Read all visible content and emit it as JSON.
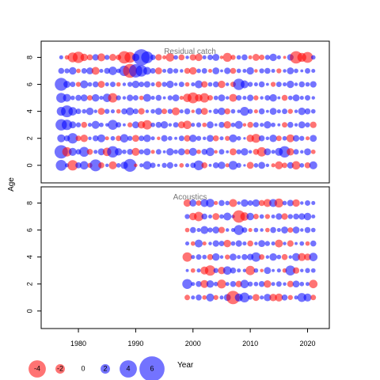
{
  "chart_data": {
    "type": "scatter",
    "ylabel": "Age",
    "xlabel": "Year",
    "x_ticks": [
      1980,
      1990,
      2000,
      2010,
      2020
    ],
    "y_ticks": [
      0,
      2,
      4,
      6,
      8
    ],
    "xlim": [
      1973.5,
      2023.8
    ],
    "ylim": [
      -1.3,
      9.2
    ],
    "grid": false,
    "colors": {
      "positive": "#0000ff",
      "negative": "#ff0000",
      "alpha": 0.55
    },
    "panels": [
      {
        "name": "residual-catch",
        "title": "Residual catch",
        "years": [
          1977,
          2021
        ],
        "ages": [
          0,
          8
        ],
        "residuals": [
          [
            1.9,
            0.5,
            -1.8,
            0.9,
            1.4,
            -0.7,
            2.1,
            -0.9,
            0.4,
            -1.3,
            0.6,
            1.2,
            2.3,
            -0.4,
            0.5,
            1.4,
            0.8,
            0.3,
            0.7,
            1.0,
            0.4,
            -0.6,
            0.5,
            0.8,
            1.7,
            -0.9,
            0.3,
            0.9,
            1.2,
            -0.5,
            1.5,
            0.7,
            0.2,
            -1.1,
            0.6,
            1.1,
            0.4,
            -0.5,
            -1.3,
            -0.8,
            1.0,
            -1.4,
            0.6,
            -0.9,
            1.3
          ],
          [
            2.4,
            -1.6,
            1.3,
            0.8,
            1.7,
            -0.9,
            0.5,
            1.1,
            -1.4,
            2.0,
            1.2,
            0.6,
            0.9,
            -1.3,
            0.7,
            1.1,
            -0.5,
            0.8,
            0.3,
            1.2,
            0.6,
            1.1,
            -0.8,
            1.3,
            -0.6,
            0.9,
            1.4,
            -0.4,
            0.8,
            0.3,
            -1.1,
            0.7,
            1.2,
            0.4,
            -0.9,
            -1.6,
            1.1,
            0.5,
            1.3,
            2.0,
            -1.2,
            0.8,
            0.4,
            1.1,
            -0.6
          ],
          [
            1.3,
            0.9,
            1.8,
            -0.8,
            -1.2,
            0.4,
            0.9,
            1.3,
            -0.5,
            0.6,
            -0.8,
            1.4,
            0.7,
            -1.1,
            0.8,
            1.2,
            0.5,
            -0.4,
            1.0,
            0.6,
            0.3,
            0.8,
            -1.0,
            1.2,
            0.7,
            0.4,
            1.1,
            -0.9,
            0.5,
            -0.7,
            1.3,
            0.6,
            0.2,
            -1.2,
            -1.5,
            0.9,
            0.4,
            1.2,
            -0.8,
            0.6,
            -1.3,
            1.0,
            0.7,
            -0.5,
            1.1
          ],
          [
            2.0,
            1.8,
            1.1,
            0.7,
            -0.9,
            0.5,
            1.3,
            0.6,
            0.4,
            1.7,
            0.8,
            0.3,
            -0.7,
            1.1,
            -1.2,
            -1.6,
            0.6,
            0.9,
            1.2,
            0.4,
            0.8,
            -1.1,
            -1.4,
            0.5,
            0.7,
            -0.6,
            1.1,
            0.3,
            0.9,
            -1.2,
            0.6,
            1.3,
            -0.4,
            -0.9,
            0.8,
            0.5,
            1.2,
            0.6,
            0.3,
            -0.8,
            0.9,
            0.4,
            1.1,
            0.7,
            -1.0
          ],
          [
            1.5,
            2.1,
            1.4,
            0.8,
            0.6,
            1.2,
            0.4,
            -1.1,
            0.7,
            0.5,
            -0.6,
            0.9,
            1.3,
            0.8,
            -1.0,
            0.4,
            0.6,
            1.1,
            -0.8,
            0.7,
            -1.3,
            0.5,
            0.9,
            -0.4,
            1.0,
            -1.1,
            0.3,
            0.8,
            1.2,
            -0.9,
            0.6,
            0.4,
            1.5,
            0.7,
            -0.5,
            0.9,
            0.3,
            1.1,
            0.5,
            0.8,
            -0.7,
            0.4,
            1.2,
            0.9,
            0.6
          ],
          [
            1.7,
            1.3,
            0.6,
            0.9,
            1.1,
            -0.8,
            1.2,
            0.5,
            1.4,
            -1.6,
            0.7,
            0.4,
            1.0,
            0.8,
            -0.6,
            1.3,
            0.5,
            0.9,
            0.3,
            0.7,
            1.1,
            -0.5,
            -1.4,
            -1.9,
            -1.2,
            -1.6,
            -0.8,
            0.6,
            1.1,
            0.4,
            -1.3,
            0.8,
            0.5,
            1.0,
            -0.7,
            0.4,
            0.8,
            1.2,
            0.3,
            -0.9,
            0.6,
            1.1,
            0.5,
            0.8,
            0.4
          ],
          [
            2.3,
            1.1,
            0.8,
            -0.7,
            1.3,
            0.6,
            0.9,
            -1.1,
            0.5,
            0.8,
            -0.6,
            0.4,
            0.7,
            1.2,
            0.8,
            1.0,
            0.5,
            -0.9,
            0.7,
            1.2,
            0.4,
            0.8,
            -0.6,
            0.5,
            1.3,
            -1.0,
            0.6,
            0.9,
            -1.2,
            0.4,
            -0.8,
            2.0,
            1.3,
            0.7,
            0.5,
            0.9,
            0.3,
            -0.7,
            0.8,
            0.5,
            1.2,
            0.4,
            0.9,
            0.6,
            1.0
          ],
          [
            0.9,
            0.7,
            1.2,
            -0.6,
            0.8,
            1.1,
            -1.3,
            0.5,
            0.9,
            1.4,
            0.6,
            1.8,
            -2.5,
            2.4,
            2.0,
            1.3,
            0.8,
            -1.1,
            0.5,
            0.9,
            0.7,
            0.4,
            -0.9,
            -1.2,
            0.6,
            0.8,
            -0.5,
            1.1,
            0.3,
            1.0,
            -0.9,
            0.6,
            0.5,
            1.2,
            -0.4,
            0.7,
            0.9,
            0.5,
            -0.7,
            0.4,
            1.1,
            0.6,
            0.3,
            0.8,
            0.5
          ],
          [
            0.5,
            -0.6,
            -1.7,
            -2.0,
            -1.2,
            -0.9,
            1.0,
            -1.3,
            0.7,
            -1.1,
            -0.8,
            -2.2,
            -1.9,
            1.2,
            3.0,
            2.1,
            0.8,
            -1.0,
            -0.5,
            -1.4,
            0.6,
            -0.9,
            0.4,
            -1.0,
            -1.2,
            0.5,
            0.8,
            1.1,
            -0.4,
            -1.5,
            -0.7,
            0.6,
            0.9,
            -0.5,
            -1.1,
            -0.8,
            0.7,
            1.2,
            0.5,
            -0.3,
            1.0,
            -2.2,
            -1.5,
            -1.9,
            0.6
          ]
        ]
      },
      {
        "name": "acoustics",
        "title": "Acoustics",
        "years": [
          1999,
          2021
        ],
        "ages": [
          1,
          8
        ],
        "residuals": [
          [
            -0.8,
            0.5,
            0.9,
            -0.6,
            1.3,
            -0.7,
            0.5,
            1.1,
            -2.4,
            1.3,
            1.7,
            0.6,
            -1.1,
            0.5,
            1.2,
            -1.2,
            -1.3,
            0.9,
            -0.7,
            0.5,
            1.5,
            1.3,
            -0.8
          ],
          [
            1.7,
            0.5,
            0.9,
            -1.3,
            1.2,
            0.6,
            -1.5,
            0.5,
            0.9,
            -1.0,
            1.4,
            0.7,
            0.6,
            0.9,
            -1.2,
            0.5,
            0.8,
            0.4,
            -1.0,
            1.1,
            0.6,
            0.5,
            -1.4
          ],
          [
            0.3,
            -0.6,
            0.5,
            -1.3,
            -1.8,
            0.7,
            -1.2,
            1.4,
            0.9,
            0.5,
            0.4,
            -1.6,
            0.6,
            -0.4,
            1.1,
            0.3,
            0.5,
            -0.6,
            1.7,
            -1.0,
            0.4,
            0.7,
            0.6
          ],
          [
            -1.6,
            0.5,
            0.8,
            0.6,
            -0.9,
            1.2,
            0.4,
            -0.7,
            1.1,
            0.5,
            0.9,
            1.0,
            1.6,
            -0.8,
            0.4,
            1.2,
            0.6,
            -0.9,
            0.4,
            1.3,
            -1.3,
            -1.1,
            1.4
          ],
          [
            0.5,
            -0.6,
            1.3,
            -0.5,
            0.4,
            1.0,
            0.8,
            -1.2,
            0.6,
            1.0,
            0.5,
            -0.9,
            0.4,
            1.1,
            0.7,
            0.5,
            -1.3,
            0.4,
            -1.0,
            0.3,
            0.6,
            -0.6,
            0.9
          ],
          [
            -0.6,
            0.9,
            0.5,
            1.3,
            0.7,
            1.1,
            -1.0,
            0.4,
            0.5,
            1.7,
            0.8,
            -0.5,
            0.6,
            0.4,
            -0.6,
            0.9,
            0.5,
            1.1,
            -0.8,
            1.1,
            0.4,
            0.9,
            0.6
          ],
          [
            0.7,
            -1.2,
            -1.6,
            0.9,
            0.5,
            -1.1,
            0.6,
            1.3,
            0.4,
            -2.2,
            -1.4,
            1.2,
            -0.8,
            0.6,
            -0.7,
            0.5,
            1.0,
            -1.0,
            0.7,
            0.9,
            1.0,
            1.2,
            0.5
          ],
          [
            -1.2,
            1.1,
            -0.8,
            1.3,
            1.4,
            -0.5,
            0.9,
            0.6,
            -1.3,
            0.4,
            1.2,
            0.8,
            1.2,
            -0.9,
            -1.3,
            1.3,
            -1.5,
            0.6,
            1.0,
            -1.2,
            0.4,
            0.8,
            0.5
          ]
        ]
      }
    ],
    "size_legend": [
      {
        "label": "-4",
        "value": -4
      },
      {
        "label": "-2",
        "value": -2
      },
      {
        "label": "0",
        "value": 0
      },
      {
        "label": "2",
        "value": 2
      },
      {
        "label": "4",
        "value": 4
      },
      {
        "label": "6",
        "value": 6
      }
    ]
  }
}
